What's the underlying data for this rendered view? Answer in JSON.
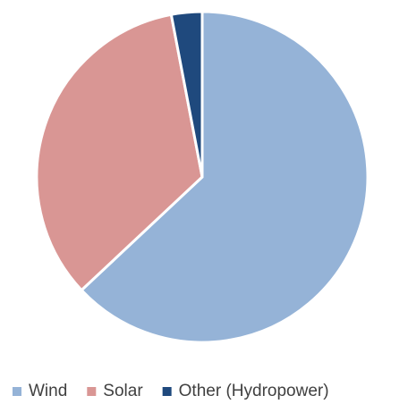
{
  "chart_data": {
    "type": "pie",
    "categories": [
      "Wind",
      "Solar",
      "Other (Hydropower)"
    ],
    "values": [
      63,
      34,
      3
    ],
    "colors": [
      "#95b3d7",
      "#d99694",
      "#1f497d"
    ],
    "legend": "bottom"
  }
}
